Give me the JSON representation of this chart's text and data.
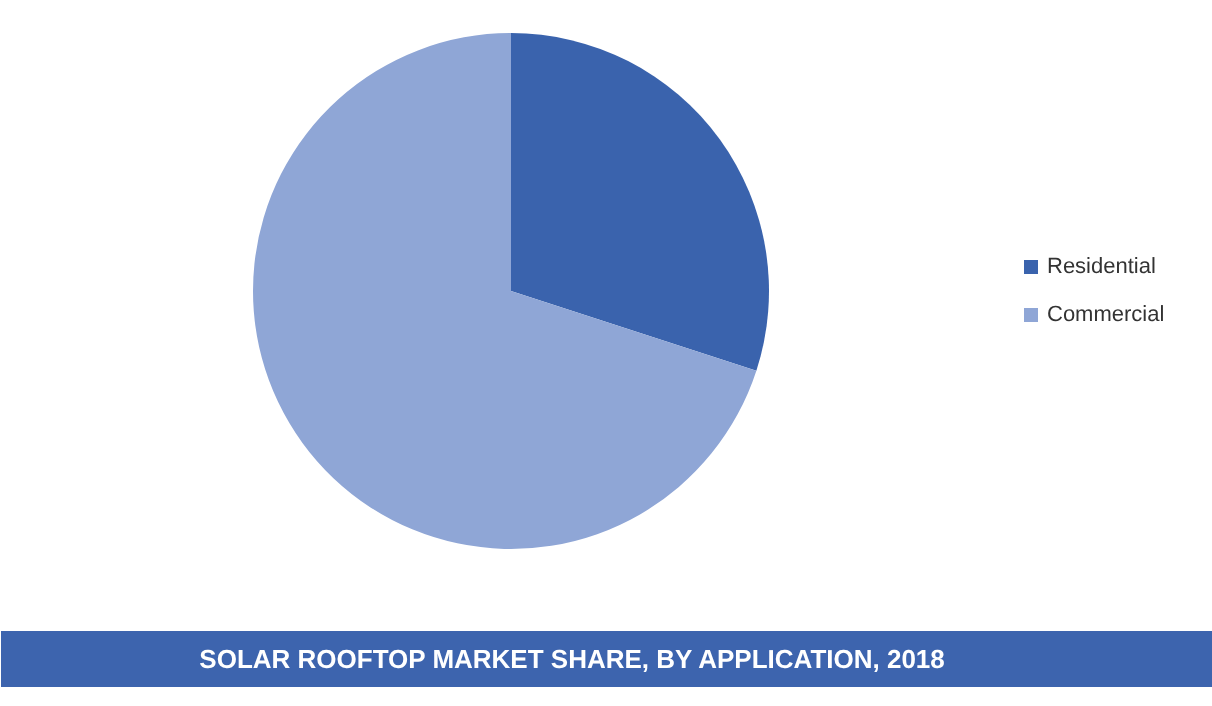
{
  "chart_data": {
    "type": "pie",
    "title": "SOLAR ROOFTOP MARKET SHARE, BY APPLICATION, 2018",
    "categories": [
      "Residential",
      "Commercial"
    ],
    "values": [
      30,
      70
    ],
    "colors": [
      "#3a63ad",
      "#8fa6d6"
    ],
    "legend": "right"
  }
}
